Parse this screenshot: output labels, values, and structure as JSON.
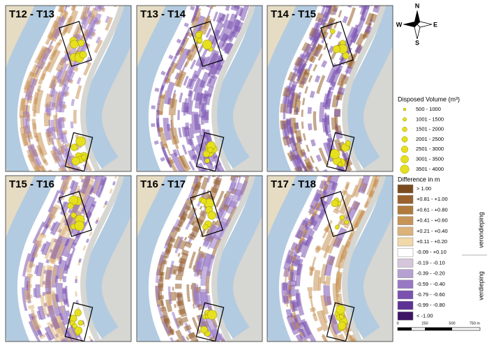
{
  "panels": [
    {
      "title": "T12 - T13"
    },
    {
      "title": "T13 - T14"
    },
    {
      "title": "T14 - T15"
    },
    {
      "title": "T15 - T16"
    },
    {
      "title": "T16 - T17"
    },
    {
      "title": "T17 - T18"
    }
  ],
  "compass": {
    "n": "N",
    "e": "E",
    "s": "S",
    "w": "W"
  },
  "legend": {
    "volume_title": "Disposed Volume (m³)",
    "volume_color": "#e6e01e",
    "volume_items": [
      "500 - 1000",
      "1001 - 1500",
      "1501 - 2000",
      "2001 - 2500",
      "2501 - 3000",
      "3001 - 3500",
      "3501 - 4000"
    ],
    "difference_title": "Difference in m",
    "difference_items": [
      {
        "label": "> 1.00",
        "color": "#7a4a1e"
      },
      {
        "label": "+0.81 - +1.00",
        "color": "#98612e"
      },
      {
        "label": "+0.61 - +0.80",
        "color": "#b07a3c"
      },
      {
        "label": "+0.41 - +0.60",
        "color": "#c69456"
      },
      {
        "label": "+0.21 - +0.40",
        "color": "#dcb27a"
      },
      {
        "label": "+0.11 - +0.20",
        "color": "#f0d8a8"
      },
      {
        "label": "-0.09 - +0.10",
        "color": "#ffffff"
      },
      {
        "label": "-0.19 - -0.10",
        "color": "#d6c6dc"
      },
      {
        "label": "-0.39 - -0.20",
        "color": "#b6a0d2"
      },
      {
        "label": "-0.59 - -0.40",
        "color": "#9878c4"
      },
      {
        "label": "-0.79 - -0.60",
        "color": "#7a52b0"
      },
      {
        "label": "-0.99 - -0.80",
        "color": "#5c3294"
      },
      {
        "label": "< -1.00",
        "color": "#3e1466"
      }
    ],
    "upper_label": "verondieping",
    "lower_label": "verdieping"
  },
  "scale": [
    "0",
    "250",
    "500",
    "750 m"
  ]
}
